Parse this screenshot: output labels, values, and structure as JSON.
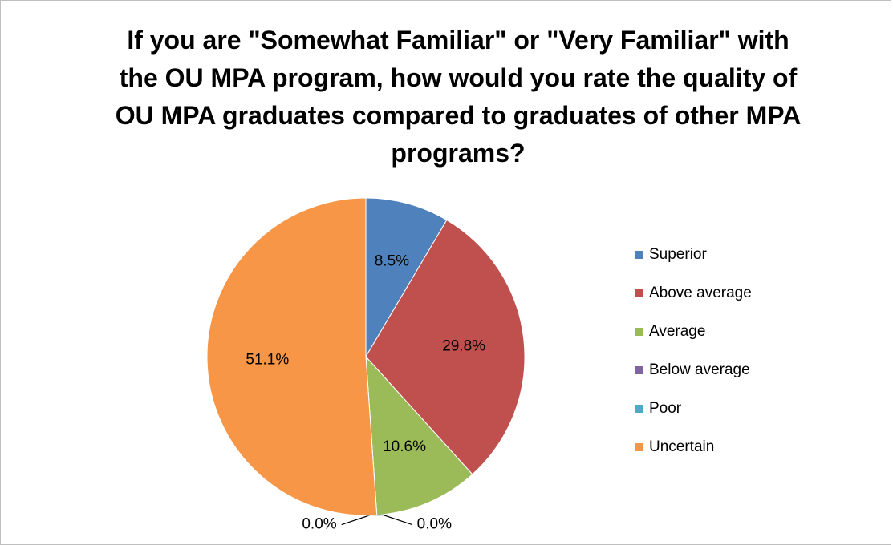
{
  "chart_data": {
    "type": "pie",
    "title": "If you are \"Somewhat Familiar\" or \"Very Familiar\" with the OU MPA program, how would you rate the quality of OU MPA graduates compared to graduates of other MPA programs?",
    "categories": [
      "Superior",
      "Above average",
      "Average",
      "Below average",
      "Poor",
      "Uncertain"
    ],
    "values": [
      8.5,
      29.8,
      10.6,
      0.0,
      0.0,
      51.1
    ],
    "value_labels": [
      "8.5%",
      "29.8%",
      "10.6%",
      "0.0%",
      "0.0%",
      "51.1%"
    ],
    "colors": [
      "#4f81bd",
      "#c0504d",
      "#9bbb59",
      "#8064a2",
      "#4bacc6",
      "#f79646"
    ],
    "legend": "right"
  }
}
